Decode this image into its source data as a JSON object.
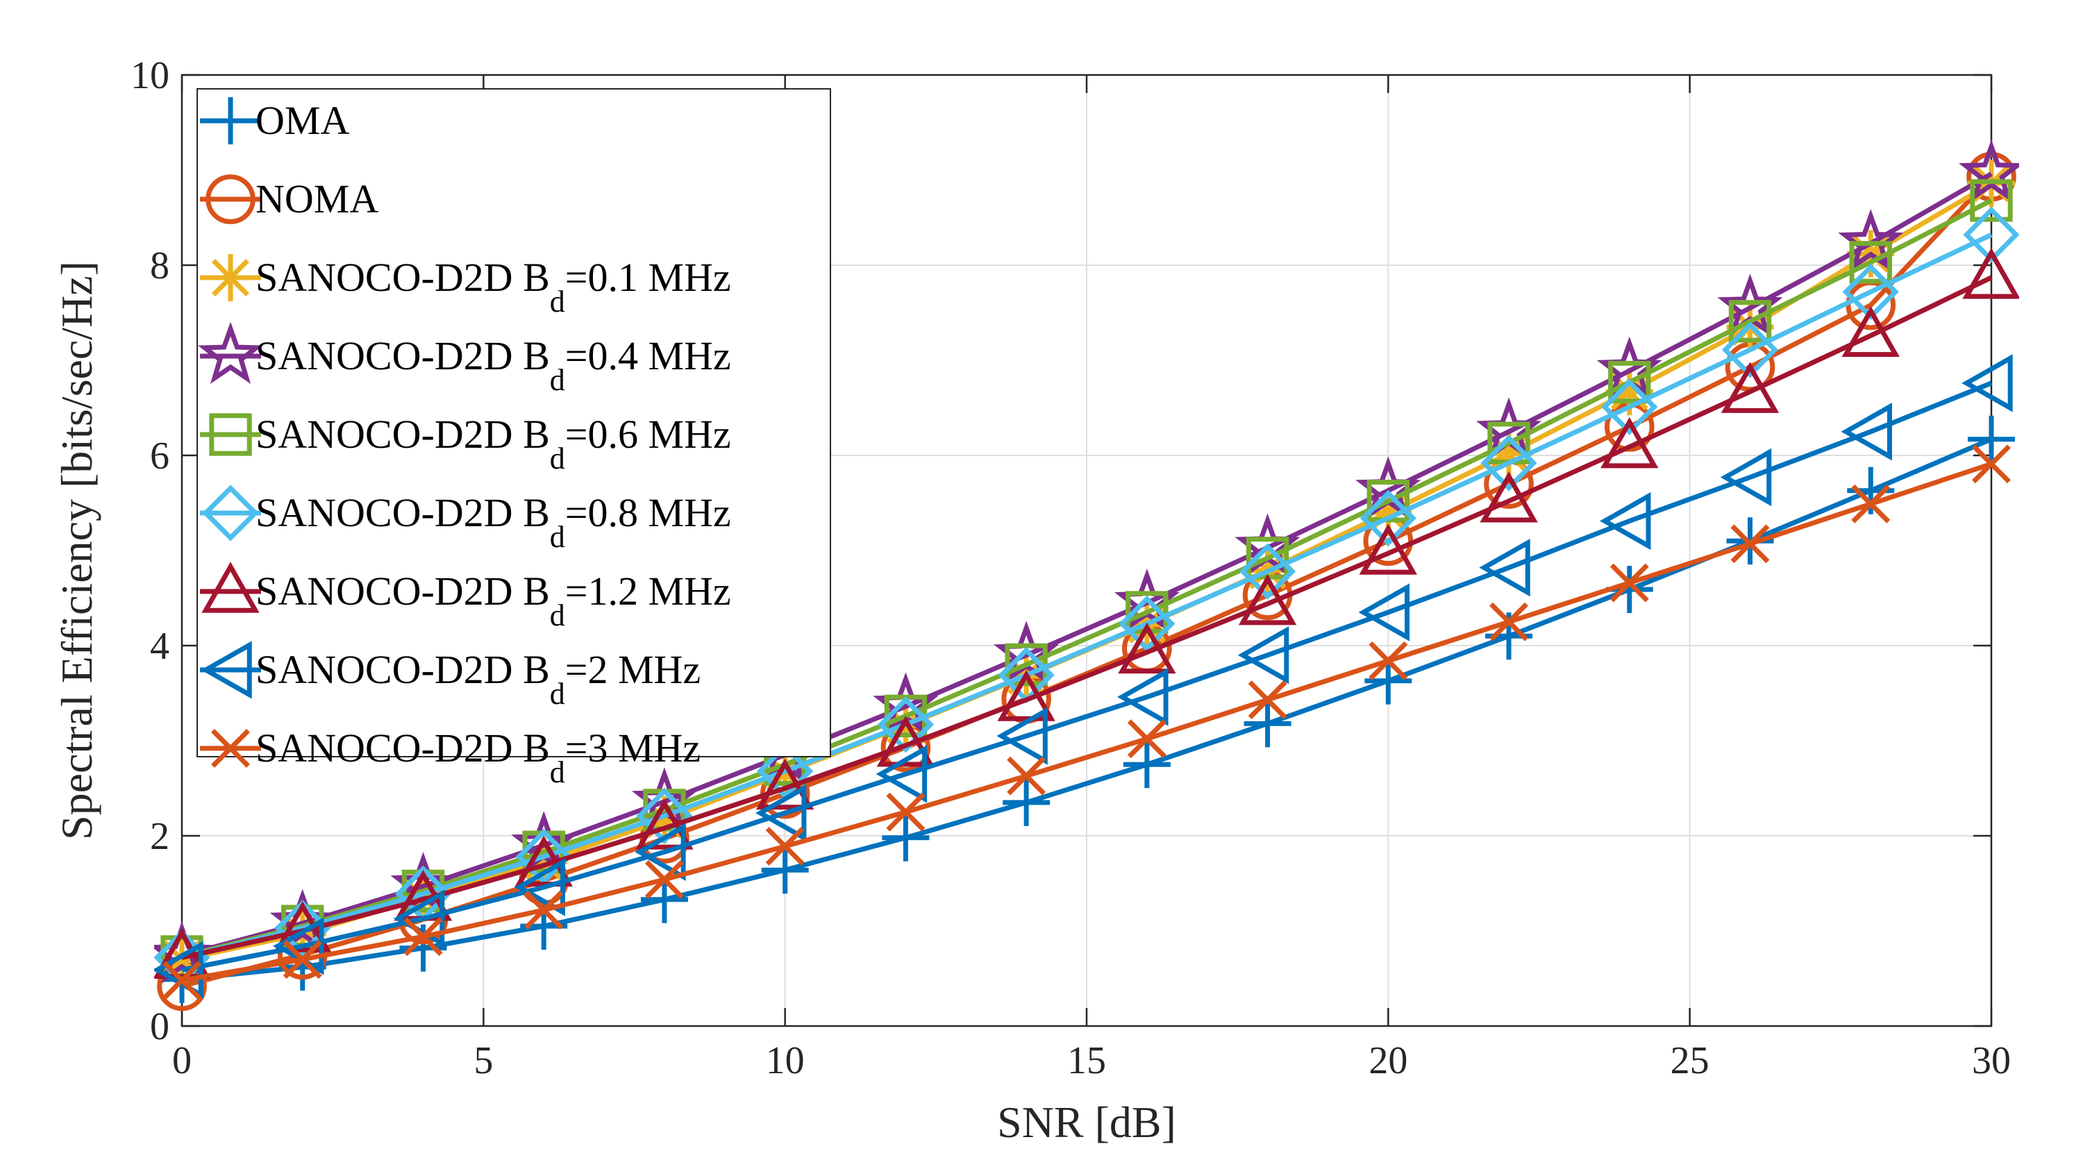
{
  "chart_data": {
    "type": "line",
    "title": "",
    "xlabel": "SNR [dB]",
    "ylabel": "Spectral Efficiency [bits/sec/Hz]",
    "xlim": [
      0,
      30
    ],
    "ylim": [
      0,
      10
    ],
    "xticks": [
      0,
      5,
      10,
      15,
      20,
      25,
      30
    ],
    "yticks": [
      0,
      2,
      4,
      6,
      8,
      10
    ],
    "grid": true,
    "legend_position": "top-left",
    "x": [
      0,
      2,
      4,
      6,
      8,
      10,
      12,
      14,
      16,
      18,
      20,
      22,
      24,
      26,
      28,
      30
    ],
    "series": [
      {
        "name": "OMA",
        "label_main": "OMA",
        "label_sub": "",
        "label_tail": "",
        "marker": "plus",
        "color": "#0072BD",
        "values": [
          0.49,
          0.62,
          0.82,
          1.05,
          1.33,
          1.64,
          1.98,
          2.35,
          2.75,
          3.18,
          3.63,
          4.1,
          4.59,
          5.1,
          5.63,
          6.17
        ]
      },
      {
        "name": "NOMA",
        "label_main": "NOMA",
        "label_sub": "",
        "label_tail": "",
        "marker": "circle",
        "color": "#D95319",
        "values": [
          0.42,
          0.75,
          1.12,
          1.53,
          1.97,
          2.44,
          2.93,
          3.44,
          3.97,
          4.53,
          5.1,
          5.7,
          6.3,
          6.93,
          7.58,
          8.93
        ]
      },
      {
        "name": "SANOCO-D2D Bd=0.1 MHz",
        "label_main": "SANOCO-D2D B",
        "label_sub": "d",
        "label_tail": "=0.1 MHz",
        "marker": "asterisk",
        "color": "#EDB120",
        "values": [
          0.7,
          0.97,
          1.35,
          1.73,
          2.17,
          2.66,
          3.16,
          3.68,
          4.22,
          4.79,
          5.4,
          6.02,
          6.67,
          7.35,
          8.12,
          8.86
        ]
      },
      {
        "name": "SANOCO-D2D Bd=0.4 MHz",
        "label_main": "SANOCO-D2D B",
        "label_sub": "d",
        "label_tail": "=0.4 MHz",
        "marker": "pentagram",
        "color": "#7E2F8E",
        "values": [
          0.74,
          1.08,
          1.47,
          1.9,
          2.36,
          2.85,
          3.36,
          3.9,
          4.45,
          5.03,
          5.63,
          6.25,
          6.89,
          7.55,
          8.23,
          8.96
        ]
      },
      {
        "name": "SANOCO-D2D Bd=0.6 MHz",
        "label_main": "SANOCO-D2D B",
        "label_sub": "d",
        "label_tail": "=0.6 MHz",
        "marker": "square",
        "color": "#77AC30",
        "values": [
          0.73,
          1.05,
          1.42,
          1.83,
          2.27,
          2.75,
          3.26,
          3.8,
          4.35,
          4.92,
          5.52,
          6.13,
          6.77,
          7.41,
          8.03,
          8.68
        ]
      },
      {
        "name": "SANOCO-D2D Bd=0.8 MHz",
        "label_main": "SANOCO-D2D B",
        "label_sub": "d",
        "label_tail": "=0.8 MHz",
        "marker": "diamond",
        "color": "#4DBEEE",
        "values": [
          0.72,
          1.03,
          1.39,
          1.78,
          2.21,
          2.68,
          3.17,
          3.69,
          4.23,
          4.78,
          5.34,
          5.92,
          6.51,
          7.11,
          7.72,
          8.32
        ]
      },
      {
        "name": "SANOCO-D2D Bd=1.2 MHz",
        "label_main": "SANOCO-D2D B",
        "label_sub": "d",
        "label_tail": "=1.2 MHz",
        "marker": "triangle-up",
        "color": "#A2142F",
        "values": [
          0.72,
          1.0,
          1.33,
          1.69,
          2.08,
          2.5,
          2.95,
          3.43,
          3.93,
          4.44,
          4.97,
          5.52,
          6.09,
          6.67,
          7.26,
          7.87
        ]
      },
      {
        "name": "SANOCO-D2D Bd=2 MHz",
        "label_main": "SANOCO-D2D B",
        "label_sub": "d",
        "label_tail": "=2 MHz",
        "marker": "triangle-left",
        "color": "#0072BD",
        "values": [
          0.59,
          0.84,
          1.13,
          1.46,
          1.83,
          2.24,
          2.65,
          3.05,
          3.46,
          3.9,
          4.35,
          4.82,
          5.31,
          5.77,
          6.25,
          6.76
        ]
      },
      {
        "name": "SANOCO-D2D Bd=3 MHz",
        "label_main": "SANOCO-D2D B",
        "label_sub": "d",
        "label_tail": "=3 MHz",
        "marker": "x",
        "color": "#D95319",
        "values": [
          0.48,
          0.7,
          0.94,
          1.22,
          1.54,
          1.89,
          2.25,
          2.63,
          3.02,
          3.43,
          3.84,
          4.25,
          4.66,
          5.07,
          5.49,
          5.91
        ]
      }
    ]
  }
}
